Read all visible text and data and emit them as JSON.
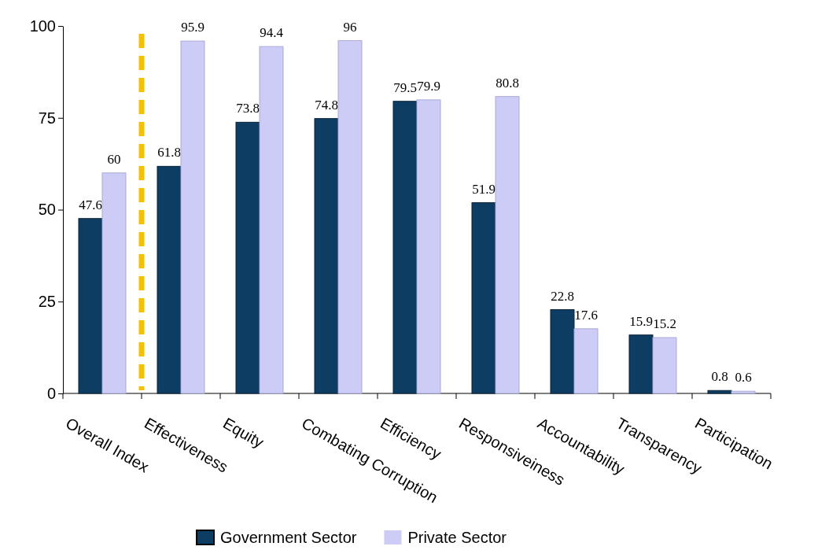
{
  "chart_data": {
    "type": "bar",
    "categories": [
      "Overall Index",
      "Effectiveness",
      "Equity",
      "Combating Corruption",
      "Efficiency",
      "Responsiveiness",
      "Accountability",
      "Transparency",
      "Participation"
    ],
    "series": [
      {
        "name": "Government Sector",
        "color": "#0e3d63",
        "values": [
          47.6,
          61.8,
          73.8,
          74.8,
          79.5,
          51.9,
          22.8,
          15.9,
          0.8
        ]
      },
      {
        "name": "Private Sector",
        "color": "#ccccf7",
        "values": [
          60,
          95.9,
          94.4,
          96,
          79.9,
          80.8,
          17.6,
          15.2,
          0.6
        ]
      }
    ],
    "ylim": [
      0,
      100
    ],
    "yticks": [
      0,
      25,
      50,
      75,
      100
    ],
    "grid": false,
    "legend": "bottom",
    "data_labels": true
  }
}
